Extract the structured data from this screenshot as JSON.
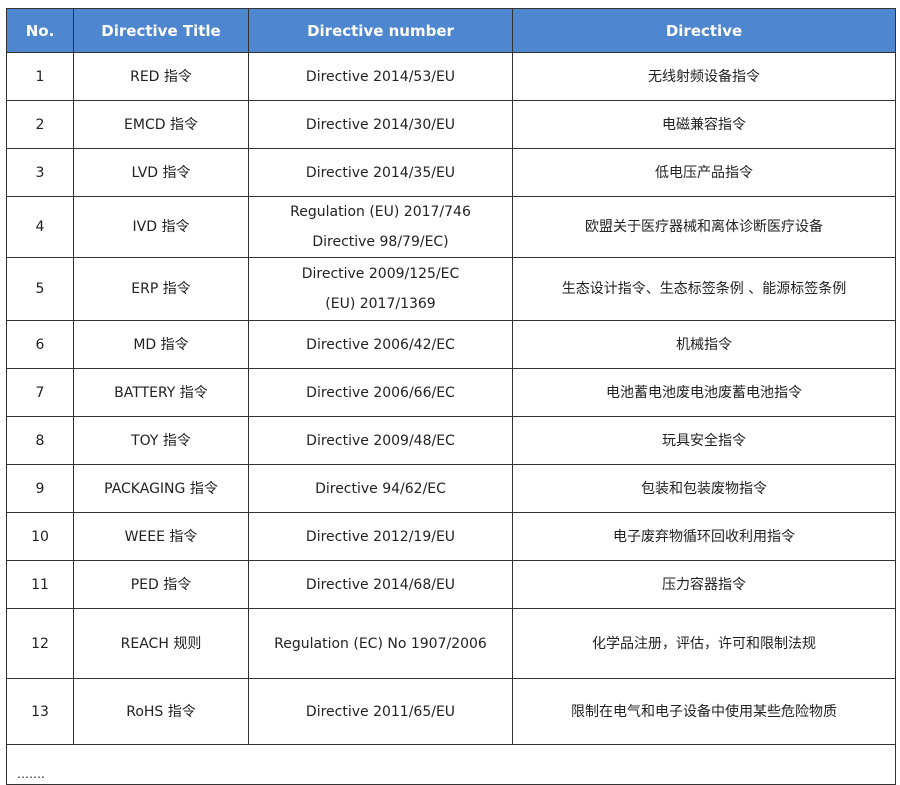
{
  "header": {
    "no": "No.",
    "title": "Directive Title",
    "number": "Directive number",
    "directive": "Directive"
  },
  "header_color": "#4f86d0",
  "rows": [
    {
      "no": "1",
      "title": "RED 指令",
      "number": [
        "Directive 2014/53/EU"
      ],
      "directive": "无线射频设备指令"
    },
    {
      "no": "2",
      "title": "EMCD 指令",
      "number": [
        "Directive 2014/30/EU"
      ],
      "directive": "电磁兼容指令"
    },
    {
      "no": "3",
      "title": "LVD 指令",
      "number": [
        "Directive 2014/35/EU"
      ],
      "directive": "低电压产品指令"
    },
    {
      "no": "4",
      "title": "IVD 指令",
      "number": [
        "Regulation (EU) 2017/746",
        "Directive 98/79/EC)"
      ],
      "directive": "欧盟关于医疗器械和离体诊断医疗设备"
    },
    {
      "no": "5",
      "title": "ERP 指令",
      "number": [
        "Directive 2009/125/EC",
        "(EU) 2017/1369"
      ],
      "directive": "生态设计指令、生态标签条例 、能源标签条例"
    },
    {
      "no": "6",
      "title": "MD 指令",
      "number": [
        "Directive 2006/42/EC"
      ],
      "directive": "机械指令"
    },
    {
      "no": "7",
      "title": "BATTERY 指令",
      "number": [
        "Directive 2006/66/EC"
      ],
      "directive": "电池蓄电池废电池废蓄电池指令"
    },
    {
      "no": "8",
      "title": "TOY 指令",
      "number": [
        "Directive 2009/48/EC"
      ],
      "directive": "玩具安全指令"
    },
    {
      "no": "9",
      "title": "PACKAGING 指令",
      "number": [
        "Directive 94/62/EC"
      ],
      "directive": "包装和包装废物指令"
    },
    {
      "no": "10",
      "title": "WEEE 指令",
      "number": [
        "Directive 2012/19/EU"
      ],
      "directive": "电子废弃物循环回收利用指令"
    },
    {
      "no": "11",
      "title": "PED 指令",
      "number": [
        "Directive 2014/68/EU"
      ],
      "directive": "压力容器指令"
    },
    {
      "no": "12",
      "title": "REACH 规则",
      "number": [
        "Regulation (EC) No 1907/2006"
      ],
      "directive": "化学品注册，评估，许可和限制法规"
    },
    {
      "no": "13",
      "title": "RoHS 指令",
      "number": [
        "Directive 2011/65/EU"
      ],
      "directive": "限制在电气和电子设备中使用某些危险物质"
    }
  ],
  "more": "……."
}
